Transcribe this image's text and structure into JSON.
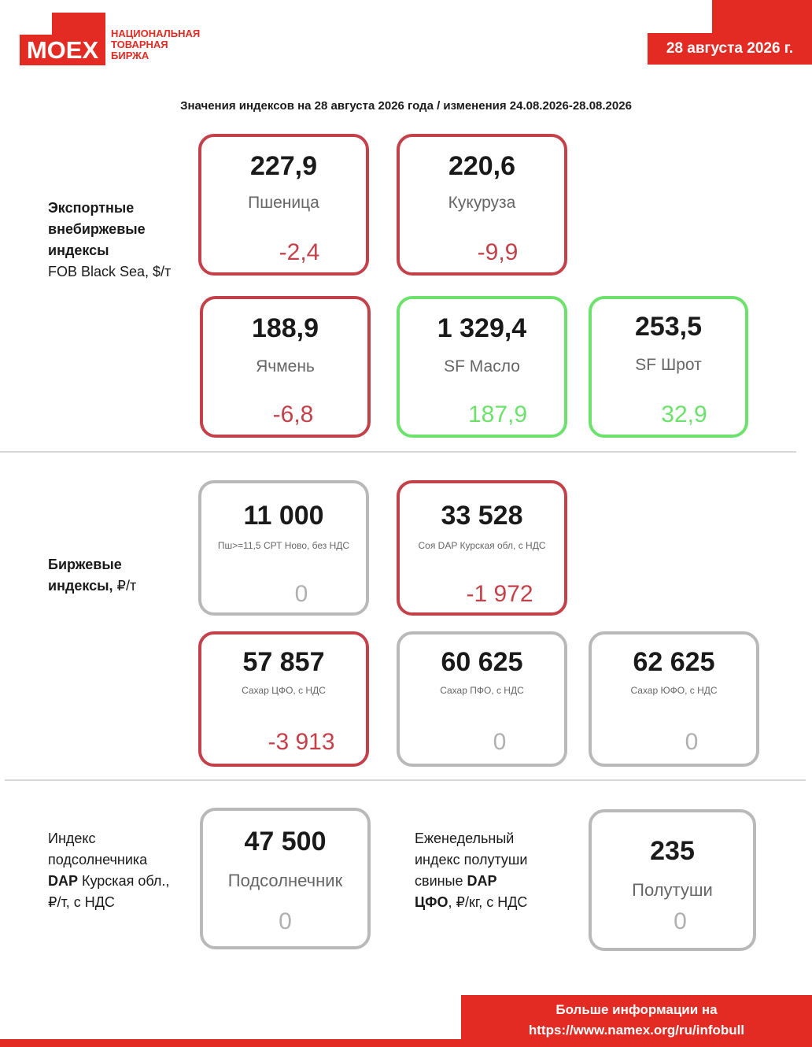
{
  "header": {
    "logo_text": "MOEX",
    "logo_subtitle": [
      "НАЦИОНАЛЬНАЯ",
      "ТОВАРНАЯ",
      "БИРЖА"
    ],
    "date": "28 августа 2026 г."
  },
  "subtitle": "Значения индексов на 28 августа 2026 года / изменения 24.08.2026-28.08.2026",
  "sections": {
    "export": {
      "label_bold": [
        "Экспортные",
        "внебиржевые",
        "индексы"
      ],
      "label_note": "FOB Black Sea, $/т",
      "cards": [
        {
          "value": "227,9",
          "name": "Пшеница",
          "change": "-2,4"
        },
        {
          "value": "220,6",
          "name": "Кукуруза",
          "change": "-9,9"
        },
        {
          "value": "188,9",
          "name": "Ячмень",
          "change": "-6,8"
        },
        {
          "value": "1 329,4",
          "name": "SF Масло",
          "change": "187,9"
        },
        {
          "value": "253,5",
          "name": "SF Шрот",
          "change": "32,9"
        }
      ]
    },
    "exchange": {
      "label_bold_1": "Биржевые",
      "label_bold_2": "индексы,",
      "label_unit": "₽/т",
      "cards": [
        {
          "value": "11 000",
          "name": "Пш>=11,5 СРТ Ново, без НДС",
          "change": "0"
        },
        {
          "value": "33 528",
          "name": "Соя DAP Курская обл, с НДС",
          "change": "-1 972"
        },
        {
          "value": "57 857",
          "name": "Сахар ЦФО, с НДС",
          "change": "-3 913"
        },
        {
          "value": "60 625",
          "name": "Сахар ПФО, с НДС",
          "change": "0"
        },
        {
          "value": "62 625",
          "name": "Сахар ЮФО, с НДС",
          "change": "0"
        }
      ]
    },
    "sunflower": {
      "label_lines": [
        "Индекс",
        "подсолнечника"
      ],
      "label_bold": "DAP",
      "label_rest": " Курская обл.,",
      "label_last": "₽/т, с НДС",
      "card": {
        "value": "47 500",
        "name": "Подсолнечник",
        "change": "0"
      }
    },
    "pork": {
      "label_lines": [
        "Еженедельный",
        "индекс полутуши"
      ],
      "label_l3_plain": "свиные ",
      "label_l3_bold": "DAP",
      "label_l4_bold": "ЦФО",
      "label_l4_rest": ", ₽/кг, с НДС",
      "card": {
        "value": "235",
        "name": "Полутуши",
        "change": "0"
      }
    }
  },
  "footer": {
    "line1": "Больше информации на",
    "line2": "https://www.namex.org/ru/infobull"
  },
  "colors": {
    "brand_red": "#e32b24",
    "negative": "#c4414a",
    "positive": "#6ce26c",
    "neutral": "#b9b9b9"
  }
}
